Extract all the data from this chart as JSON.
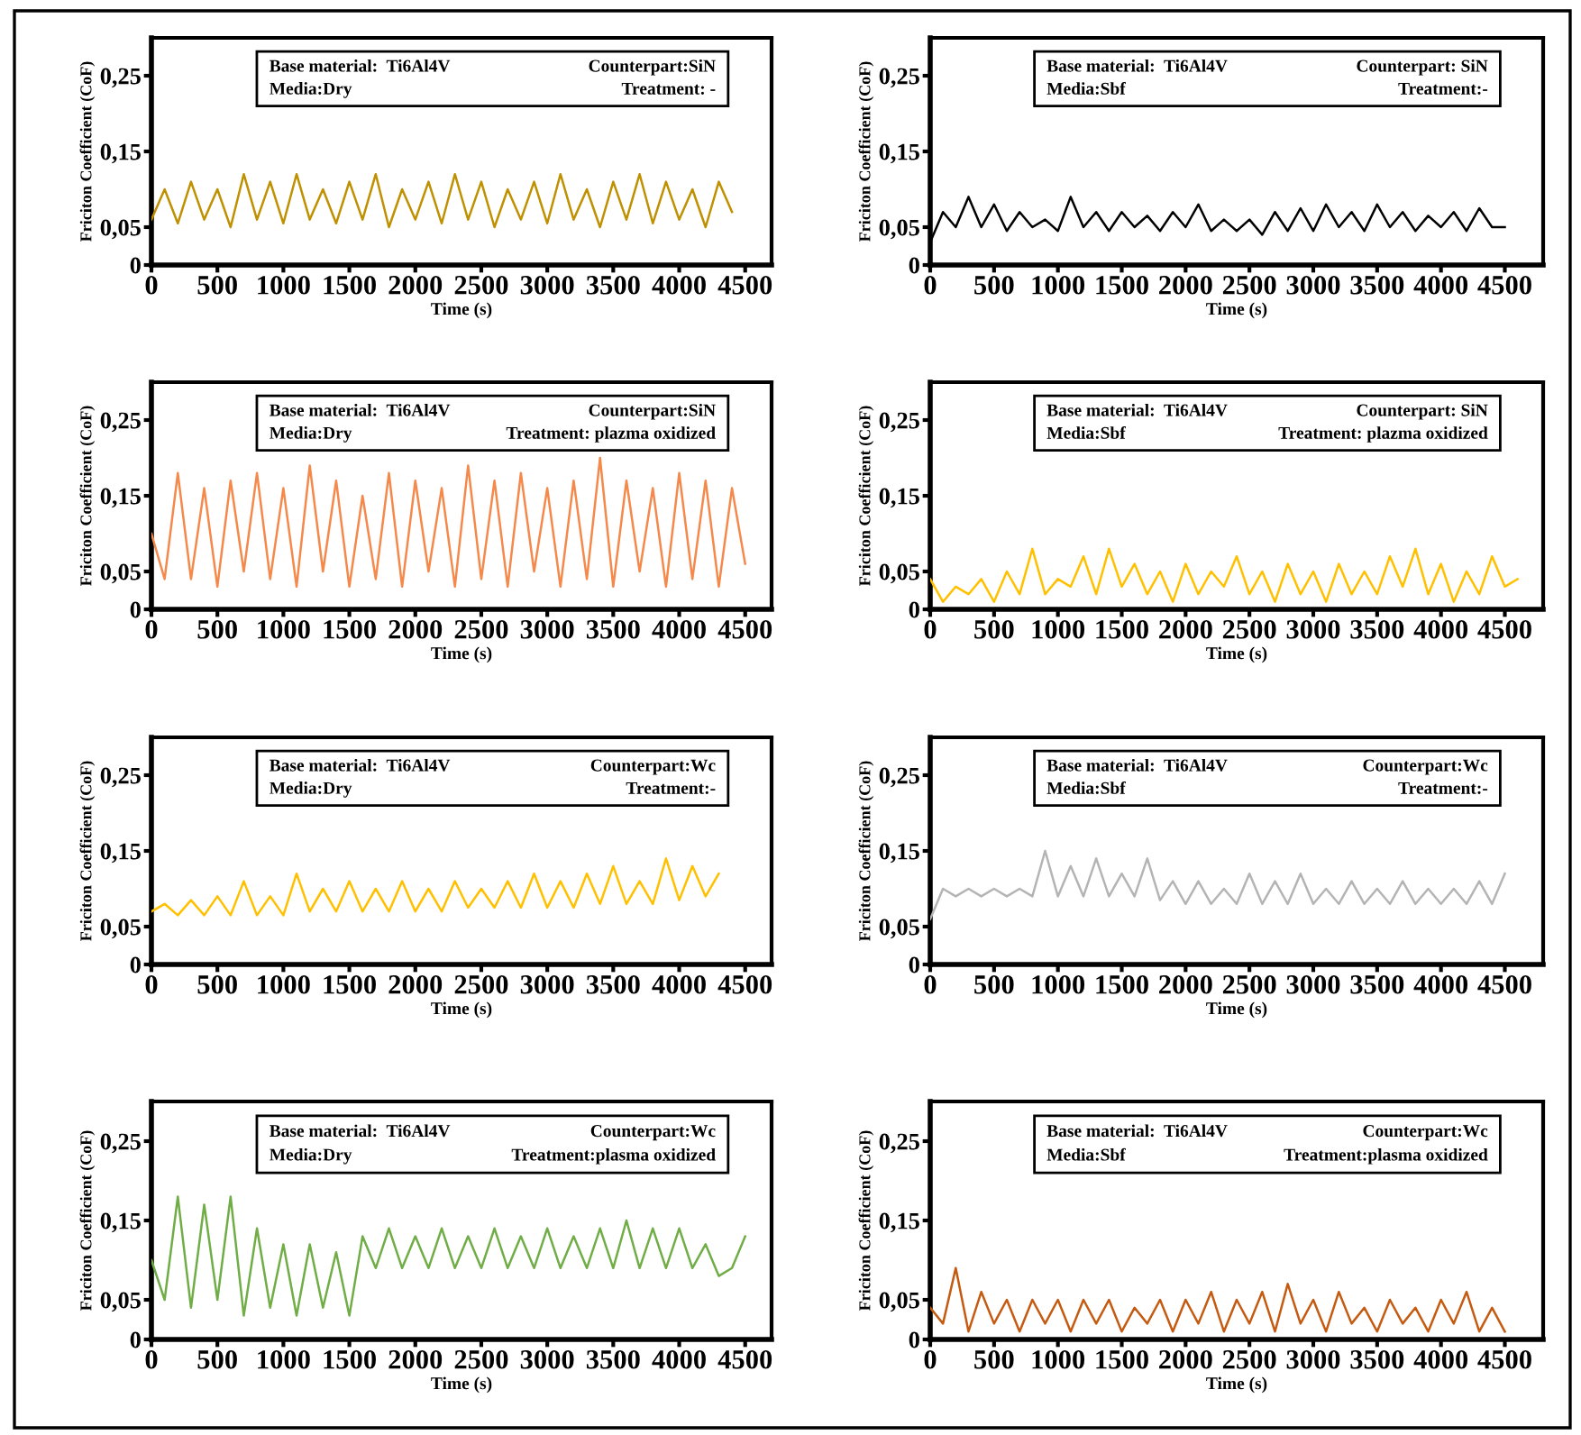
{
  "chart_data": [
    {
      "type": "line",
      "xlabel": "Time (s)",
      "ylabel": "Friciton Coefficient (CoF)",
      "annotations": [
        "Base material:  Ti6Al4V",
        "Counterpart:SiN",
        "Media:Dry",
        "Treatment: -"
      ],
      "xlim": [
        0,
        4700
      ],
      "ylim": [
        0,
        0.3
      ],
      "xticks": [
        0,
        500,
        1000,
        1500,
        2000,
        2500,
        3000,
        3500,
        4000,
        4500
      ],
      "yticks": [
        {
          "value": 0,
          "label": "0"
        },
        {
          "value": 0.05,
          "label": "0,05"
        },
        {
          "value": 0.15,
          "label": "0,15"
        },
        {
          "value": 0.25,
          "label": "0,25"
        }
      ],
      "x": [
        0,
        100,
        200,
        300,
        400,
        500,
        600,
        700,
        800,
        900,
        1000,
        1100,
        1200,
        1300,
        1400,
        1500,
        1600,
        1700,
        1800,
        1900,
        2000,
        2100,
        2200,
        2300,
        2400,
        2500,
        2600,
        2700,
        2800,
        2900,
        3000,
        3100,
        3200,
        3300,
        3400,
        3500,
        3600,
        3700,
        3800,
        3900,
        4000,
        4100,
        4200,
        4300,
        4400
      ],
      "series": [
        {
          "color": "#bf9000",
          "values": [
            0.06,
            0.1,
            0.055,
            0.11,
            0.06,
            0.1,
            0.05,
            0.12,
            0.06,
            0.11,
            0.055,
            0.12,
            0.06,
            0.1,
            0.055,
            0.11,
            0.06,
            0.12,
            0.05,
            0.1,
            0.06,
            0.11,
            0.055,
            0.12,
            0.06,
            0.11,
            0.05,
            0.1,
            0.06,
            0.11,
            0.055,
            0.12,
            0.06,
            0.1,
            0.05,
            0.11,
            0.06,
            0.12,
            0.055,
            0.11,
            0.06,
            0.1,
            0.05,
            0.11,
            0.07
          ]
        }
      ]
    },
    {
      "type": "line",
      "xlabel": "Time (s)",
      "ylabel": "Friciton Coefficient (CoF)",
      "annotations": [
        "Base material:  Ti6Al4V",
        "Counterpart: SiN",
        "Media:Sbf",
        "Treatment:-"
      ],
      "xlim": [
        0,
        4800
      ],
      "ylim": [
        0,
        0.3
      ],
      "xticks": [
        0,
        500,
        1000,
        1500,
        2000,
        2500,
        3000,
        3500,
        4000,
        4500
      ],
      "yticks": [
        {
          "value": 0,
          "label": "0"
        },
        {
          "value": 0.05,
          "label": "0,05"
        },
        {
          "value": 0.15,
          "label": "0,15"
        },
        {
          "value": 0.25,
          "label": "0,25"
        }
      ],
      "x": [
        0,
        100,
        200,
        300,
        400,
        500,
        600,
        700,
        800,
        900,
        1000,
        1100,
        1200,
        1300,
        1400,
        1500,
        1600,
        1700,
        1800,
        1900,
        2000,
        2100,
        2200,
        2300,
        2400,
        2500,
        2600,
        2700,
        2800,
        2900,
        3000,
        3100,
        3200,
        3300,
        3400,
        3500,
        3600,
        3700,
        3800,
        3900,
        4000,
        4100,
        4200,
        4300,
        4400,
        4500
      ],
      "series": [
        {
          "color": "#000000",
          "values": [
            0.03,
            0.07,
            0.05,
            0.09,
            0.05,
            0.08,
            0.045,
            0.07,
            0.05,
            0.06,
            0.045,
            0.09,
            0.05,
            0.07,
            0.045,
            0.07,
            0.05,
            0.065,
            0.045,
            0.07,
            0.05,
            0.08,
            0.045,
            0.06,
            0.045,
            0.06,
            0.04,
            0.07,
            0.045,
            0.075,
            0.045,
            0.08,
            0.05,
            0.07,
            0.045,
            0.08,
            0.05,
            0.07,
            0.045,
            0.065,
            0.05,
            0.07,
            0.045,
            0.075,
            0.05,
            0.05
          ]
        }
      ]
    },
    {
      "type": "line",
      "xlabel": "Time (s)",
      "ylabel": "Friciton Coefficient (CoF)",
      "annotations": [
        "Base material:  Ti6Al4V",
        "Counterpart:SiN",
        "Media:Dry",
        "Treatment: plazma oxidized"
      ],
      "xlim": [
        0,
        4700
      ],
      "ylim": [
        0,
        0.3
      ],
      "xticks": [
        0,
        500,
        1000,
        1500,
        2000,
        2500,
        3000,
        3500,
        4000,
        4500
      ],
      "yticks": [
        {
          "value": 0,
          "label": "0"
        },
        {
          "value": 0.05,
          "label": "0,05"
        },
        {
          "value": 0.15,
          "label": "0,15"
        },
        {
          "value": 0.25,
          "label": "0,25"
        }
      ],
      "x": [
        0,
        100,
        200,
        300,
        400,
        500,
        600,
        700,
        800,
        900,
        1000,
        1100,
        1200,
        1300,
        1400,
        1500,
        1600,
        1700,
        1800,
        1900,
        2000,
        2100,
        2200,
        2300,
        2400,
        2500,
        2600,
        2700,
        2800,
        2900,
        3000,
        3100,
        3200,
        3300,
        3400,
        3500,
        3600,
        3700,
        3800,
        3900,
        4000,
        4100,
        4200,
        4300,
        4400,
        4500
      ],
      "series": [
        {
          "color": "#f4894b",
          "values": [
            0.1,
            0.04,
            0.18,
            0.04,
            0.16,
            0.03,
            0.17,
            0.05,
            0.18,
            0.04,
            0.16,
            0.03,
            0.19,
            0.05,
            0.17,
            0.03,
            0.15,
            0.04,
            0.18,
            0.03,
            0.17,
            0.05,
            0.16,
            0.03,
            0.19,
            0.04,
            0.17,
            0.03,
            0.18,
            0.05,
            0.16,
            0.03,
            0.17,
            0.04,
            0.2,
            0.03,
            0.17,
            0.05,
            0.16,
            0.03,
            0.18,
            0.04,
            0.17,
            0.03,
            0.16,
            0.06
          ]
        }
      ]
    },
    {
      "type": "line",
      "xlabel": "Time (s)",
      "ylabel": "Friciton Coefficient (CoF)",
      "annotations": [
        "Base material:  Ti6Al4V",
        "Counterpart: SiN",
        "Media:Sbf",
        "Treatment: plazma oxidized"
      ],
      "xlim": [
        0,
        4800
      ],
      "ylim": [
        0,
        0.3
      ],
      "xticks": [
        0,
        500,
        1000,
        1500,
        2000,
        2500,
        3000,
        3500,
        4000,
        4500
      ],
      "yticks": [
        {
          "value": 0,
          "label": "0"
        },
        {
          "value": 0.05,
          "label": "0,05"
        },
        {
          "value": 0.15,
          "label": "0,15"
        },
        {
          "value": 0.25,
          "label": "0,25"
        }
      ],
      "x": [
        0,
        100,
        200,
        300,
        400,
        500,
        600,
        700,
        800,
        900,
        1000,
        1100,
        1200,
        1300,
        1400,
        1500,
        1600,
        1700,
        1800,
        1900,
        2000,
        2100,
        2200,
        2300,
        2400,
        2500,
        2600,
        2700,
        2800,
        2900,
        3000,
        3100,
        3200,
        3300,
        3400,
        3500,
        3600,
        3700,
        3800,
        3900,
        4000,
        4100,
        4200,
        4300,
        4400,
        4500,
        4600
      ],
      "series": [
        {
          "color": "#ffc000",
          "values": [
            0.04,
            0.01,
            0.03,
            0.02,
            0.04,
            0.01,
            0.05,
            0.02,
            0.08,
            0.02,
            0.04,
            0.03,
            0.07,
            0.02,
            0.08,
            0.03,
            0.06,
            0.02,
            0.05,
            0.01,
            0.06,
            0.02,
            0.05,
            0.03,
            0.07,
            0.02,
            0.05,
            0.01,
            0.06,
            0.02,
            0.05,
            0.01,
            0.06,
            0.02,
            0.05,
            0.02,
            0.07,
            0.03,
            0.08,
            0.02,
            0.06,
            0.01,
            0.05,
            0.02,
            0.07,
            0.03,
            0.04
          ]
        }
      ]
    },
    {
      "type": "line",
      "xlabel": "Time (s)",
      "ylabel": "Friciton Coefficient (CoF)",
      "annotations": [
        "Base material:  Ti6Al4V",
        "Counterpart:Wc",
        "Media:Dry",
        "Treatment:-"
      ],
      "xlim": [
        0,
        4700
      ],
      "ylim": [
        0,
        0.3
      ],
      "xticks": [
        0,
        500,
        1000,
        1500,
        2000,
        2500,
        3000,
        3500,
        4000,
        4500
      ],
      "yticks": [
        {
          "value": 0,
          "label": "0"
        },
        {
          "value": 0.05,
          "label": "0,05"
        },
        {
          "value": 0.15,
          "label": "0,15"
        },
        {
          "value": 0.25,
          "label": "0,25"
        }
      ],
      "x": [
        0,
        100,
        200,
        300,
        400,
        500,
        600,
        700,
        800,
        900,
        1000,
        1100,
        1200,
        1300,
        1400,
        1500,
        1600,
        1700,
        1800,
        1900,
        2000,
        2100,
        2200,
        2300,
        2400,
        2500,
        2600,
        2700,
        2800,
        2900,
        3000,
        3100,
        3200,
        3300,
        3400,
        3500,
        3600,
        3700,
        3800,
        3900,
        4000,
        4100,
        4200,
        4300
      ],
      "series": [
        {
          "color": "#ffc000",
          "values": [
            0.07,
            0.08,
            0.065,
            0.085,
            0.065,
            0.09,
            0.065,
            0.11,
            0.065,
            0.09,
            0.065,
            0.12,
            0.07,
            0.1,
            0.07,
            0.11,
            0.07,
            0.1,
            0.07,
            0.11,
            0.07,
            0.1,
            0.07,
            0.11,
            0.075,
            0.1,
            0.075,
            0.11,
            0.075,
            0.12,
            0.075,
            0.11,
            0.075,
            0.12,
            0.08,
            0.13,
            0.08,
            0.11,
            0.08,
            0.14,
            0.085,
            0.13,
            0.09,
            0.12
          ]
        }
      ]
    },
    {
      "type": "line",
      "xlabel": "Time (s)",
      "ylabel": "Friciton Coefficient (CoF)",
      "annotations": [
        "Base material:  Ti6Al4V",
        "Counterpart:Wc",
        "Media:Sbf",
        "Treatment:-"
      ],
      "xlim": [
        0,
        4800
      ],
      "ylim": [
        0,
        0.3
      ],
      "xticks": [
        0,
        500,
        1000,
        1500,
        2000,
        2500,
        3000,
        3500,
        4000,
        4500
      ],
      "yticks": [
        {
          "value": 0,
          "label": "0"
        },
        {
          "value": 0.05,
          "label": "0,05"
        },
        {
          "value": 0.15,
          "label": "0,15"
        },
        {
          "value": 0.25,
          "label": "0,25"
        }
      ],
      "x": [
        0,
        100,
        200,
        300,
        400,
        500,
        600,
        700,
        800,
        900,
        1000,
        1100,
        1200,
        1300,
        1400,
        1500,
        1600,
        1700,
        1800,
        1900,
        2000,
        2100,
        2200,
        2300,
        2400,
        2500,
        2600,
        2700,
        2800,
        2900,
        3000,
        3100,
        3200,
        3300,
        3400,
        3500,
        3600,
        3700,
        3800,
        3900,
        4000,
        4100,
        4200,
        4300,
        4400,
        4500
      ],
      "series": [
        {
          "color": "#b4b4b4",
          "values": [
            0.06,
            0.1,
            0.09,
            0.1,
            0.09,
            0.1,
            0.09,
            0.1,
            0.09,
            0.15,
            0.09,
            0.13,
            0.09,
            0.14,
            0.09,
            0.12,
            0.09,
            0.14,
            0.085,
            0.11,
            0.08,
            0.11,
            0.08,
            0.1,
            0.08,
            0.12,
            0.08,
            0.11,
            0.08,
            0.12,
            0.08,
            0.1,
            0.08,
            0.11,
            0.08,
            0.1,
            0.08,
            0.11,
            0.08,
            0.1,
            0.08,
            0.1,
            0.08,
            0.11,
            0.08,
            0.12
          ]
        }
      ]
    },
    {
      "type": "line",
      "xlabel": "Time (s)",
      "ylabel": "Friciton Coefficient (CoF)",
      "annotations": [
        "Base material:  Ti6Al4V",
        "Counterpart:Wc",
        "Media:Dry",
        "Treatment:plasma oxidized"
      ],
      "xlim": [
        0,
        4700
      ],
      "ylim": [
        0,
        0.3
      ],
      "xticks": [
        0,
        500,
        1000,
        1500,
        2000,
        2500,
        3000,
        3500,
        4000,
        4500
      ],
      "yticks": [
        {
          "value": 0,
          "label": "0"
        },
        {
          "value": 0.05,
          "label": "0,05"
        },
        {
          "value": 0.15,
          "label": "0,15"
        },
        {
          "value": 0.25,
          "label": "0,25"
        }
      ],
      "x": [
        0,
        100,
        200,
        300,
        400,
        500,
        600,
        700,
        800,
        900,
        1000,
        1100,
        1200,
        1300,
        1400,
        1500,
        1600,
        1700,
        1800,
        1900,
        2000,
        2100,
        2200,
        2300,
        2400,
        2500,
        2600,
        2700,
        2800,
        2900,
        3000,
        3100,
        3200,
        3300,
        3400,
        3500,
        3600,
        3700,
        3800,
        3900,
        4000,
        4100,
        4200,
        4300,
        4400,
        4500
      ],
      "series": [
        {
          "color": "#70ad47",
          "values": [
            0.1,
            0.05,
            0.18,
            0.04,
            0.17,
            0.05,
            0.18,
            0.03,
            0.14,
            0.04,
            0.12,
            0.03,
            0.12,
            0.04,
            0.11,
            0.03,
            0.13,
            0.09,
            0.14,
            0.09,
            0.13,
            0.09,
            0.14,
            0.09,
            0.13,
            0.09,
            0.14,
            0.09,
            0.13,
            0.09,
            0.14,
            0.09,
            0.13,
            0.09,
            0.14,
            0.09,
            0.15,
            0.09,
            0.14,
            0.09,
            0.14,
            0.09,
            0.12,
            0.08,
            0.09,
            0.13
          ]
        }
      ]
    },
    {
      "type": "line",
      "xlabel": "Time (s)",
      "ylabel": "Friciton Coefficient (CoF)",
      "annotations": [
        "Base material:  Ti6Al4V",
        "Counterpart:Wc",
        "Media:Sbf",
        "Treatment:plasma oxidized"
      ],
      "xlim": [
        0,
        4800
      ],
      "ylim": [
        0,
        0.3
      ],
      "xticks": [
        0,
        500,
        1000,
        1500,
        2000,
        2500,
        3000,
        3500,
        4000,
        4500
      ],
      "yticks": [
        {
          "value": 0,
          "label": "0"
        },
        {
          "value": 0.05,
          "label": "0,05"
        },
        {
          "value": 0.15,
          "label": "0,15"
        },
        {
          "value": 0.25,
          "label": "0,25"
        }
      ],
      "x": [
        0,
        100,
        200,
        300,
        400,
        500,
        600,
        700,
        800,
        900,
        1000,
        1100,
        1200,
        1300,
        1400,
        1500,
        1600,
        1700,
        1800,
        1900,
        2000,
        2100,
        2200,
        2300,
        2400,
        2500,
        2600,
        2700,
        2800,
        2900,
        3000,
        3100,
        3200,
        3300,
        3400,
        3500,
        3600,
        3700,
        3800,
        3900,
        4000,
        4100,
        4200,
        4300,
        4400,
        4500
      ],
      "series": [
        {
          "color": "#c55a11",
          "values": [
            0.04,
            0.02,
            0.09,
            0.01,
            0.06,
            0.02,
            0.05,
            0.01,
            0.05,
            0.02,
            0.05,
            0.01,
            0.05,
            0.02,
            0.05,
            0.01,
            0.04,
            0.02,
            0.05,
            0.01,
            0.05,
            0.02,
            0.06,
            0.01,
            0.05,
            0.02,
            0.06,
            0.01,
            0.07,
            0.02,
            0.05,
            0.01,
            0.06,
            0.02,
            0.04,
            0.01,
            0.05,
            0.02,
            0.04,
            0.01,
            0.05,
            0.02,
            0.06,
            0.01,
            0.04,
            0.01
          ]
        }
      ]
    }
  ]
}
